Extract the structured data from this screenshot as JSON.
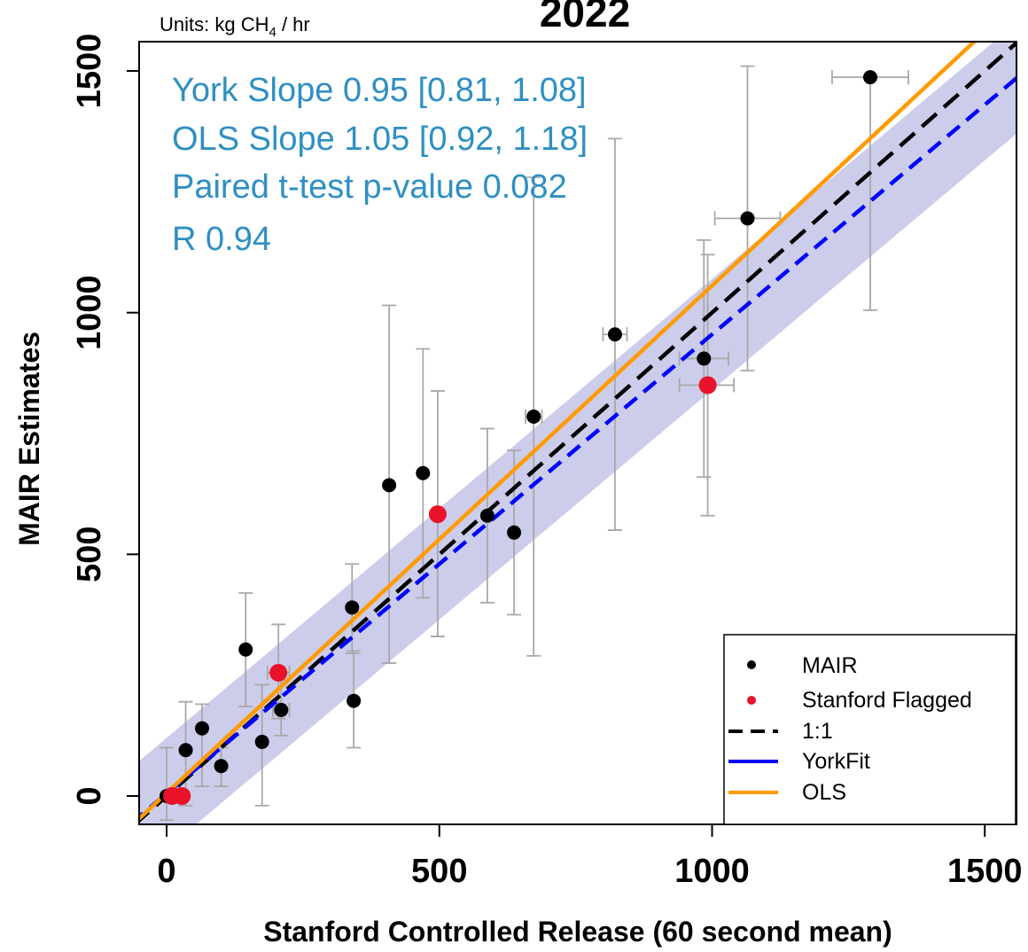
{
  "chart_data": {
    "type": "scatter",
    "title": "2022",
    "units_note": "Units: kg CH",
    "units_sub": "4",
    "units_rest": " / hr",
    "xlabel": "Stanford Controlled Release (60 second mean)",
    "ylabel": "MAIR Estimates",
    "xlim": [
      -100,
      1560
    ],
    "ylim": [
      -60,
      1570
    ],
    "xticks": [
      0,
      500,
      1000,
      1500
    ],
    "yticks": [
      0,
      500,
      1000,
      1500
    ],
    "xtick_labels": [
      "0",
      "500",
      "1000",
      "1500"
    ],
    "ytick_labels": [
      "0",
      "500",
      "1000",
      "1500"
    ],
    "grid": false,
    "legend_position": "bottom-right",
    "stats": [
      "York Slope 0.95 [0.81, 1.08]",
      "OLS Slope 1.05 [0.92, 1.18]",
      "Paired t-test p-value 0.082",
      "R 0.94"
    ],
    "legend": [
      {
        "label": "MAIR",
        "kind": "point",
        "color": "#000000"
      },
      {
        "label": "Stanford Flagged",
        "kind": "point",
        "color": "#e8132a"
      },
      {
        "label": "1:1",
        "kind": "dashed",
        "color": "#000000"
      },
      {
        "label": "YorkFit",
        "kind": "line",
        "color": "#0000ff"
      },
      {
        "label": "OLS",
        "kind": "line",
        "color": "#ff9a00"
      }
    ],
    "lines": {
      "one_to_one": {
        "slope": 1.0,
        "intercept": 0,
        "color": "#000000"
      },
      "york": {
        "slope": 0.95,
        "intercept": 5,
        "color": "#0000ff"
      },
      "ols": {
        "slope": 1.05,
        "intercept": 6,
        "color": "#ff9a00"
      },
      "band_halfwidth": 115,
      "band_color": "#8e90d2"
    },
    "series": [
      {
        "name": "MAIR",
        "color": "#000000",
        "points": [
          {
            "x": 0,
            "y": 0,
            "ylo": -50,
            "yhi": 100
          },
          {
            "x": 35,
            "y": 95,
            "ylo": -20,
            "yhi": 195
          },
          {
            "x": 65,
            "y": 140,
            "ylo": 20,
            "yhi": 190
          },
          {
            "x": 100,
            "y": 62,
            "ylo": 20,
            "yhi": 100
          },
          {
            "x": 145,
            "y": 303,
            "ylo": 185,
            "yhi": 420
          },
          {
            "x": 175,
            "y": 112,
            "ylo": -20,
            "yhi": 230
          },
          {
            "x": 210,
            "y": 178,
            "ylo": 125,
            "yhi": 240,
            "xlo": 195,
            "xhi": 225
          },
          {
            "x": 340,
            "y": 390,
            "ylo": 295,
            "yhi": 480
          },
          {
            "x": 343,
            "y": 197,
            "ylo": 100,
            "yhi": 300
          },
          {
            "x": 408,
            "y": 643,
            "ylo": 275,
            "yhi": 1015
          },
          {
            "x": 470,
            "y": 668,
            "ylo": 410,
            "yhi": 925
          },
          {
            "x": 588,
            "y": 580,
            "ylo": 400,
            "yhi": 760
          },
          {
            "x": 637,
            "y": 545,
            "ylo": 375,
            "yhi": 715
          },
          {
            "x": 673,
            "y": 785,
            "ylo": 290,
            "yhi": 1280,
            "xlo": 658,
            "xhi": 688
          },
          {
            "x": 822,
            "y": 955,
            "ylo": 550,
            "yhi": 1360,
            "xlo": 800,
            "xhi": 844
          },
          {
            "x": 985,
            "y": 905,
            "ylo": 660,
            "yhi": 1150,
            "xlo": 940,
            "xhi": 1030
          },
          {
            "x": 1065,
            "y": 1195,
            "ylo": 880,
            "yhi": 1510,
            "xlo": 1005,
            "xhi": 1125
          },
          {
            "x": 1290,
            "y": 1487,
            "ylo": 1005,
            "yhi": 1490,
            "xlo": 1220,
            "xhi": 1360
          }
        ]
      },
      {
        "name": "Stanford Flagged",
        "color": "#e8132a",
        "points": [
          {
            "x": 10,
            "y": 0,
            "ylo": -10,
            "yhi": 10
          },
          {
            "x": 28,
            "y": 0,
            "ylo": -10,
            "yhi": 10
          },
          {
            "x": 205,
            "y": 255,
            "ylo": 160,
            "yhi": 355,
            "xlo": 185,
            "xhi": 225
          },
          {
            "x": 497,
            "y": 583,
            "ylo": 330,
            "yhi": 838
          },
          {
            "x": 992,
            "y": 850,
            "ylo": 580,
            "yhi": 1120,
            "xlo": 940,
            "xhi": 1040
          }
        ]
      }
    ]
  }
}
